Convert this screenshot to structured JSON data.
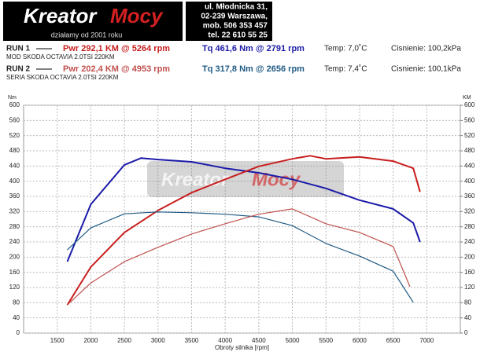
{
  "header": {
    "logo": {
      "left": "Kreator",
      "right": "Mocy",
      "tagline": "działamy od 2001 roku"
    },
    "address": [
      "ul. Młodnicka 31,",
      "02-239  Warszawa,",
      "mob.  506 353 457",
      "tel.  22 610 55 25"
    ]
  },
  "runs": [
    {
      "label": "RUN 1",
      "power": "Pwr  292,1 KM @ 5264 rpm",
      "torque": "Tq  461,6 Nm @ 2791 rpm",
      "temp": "Temp: 7,0˚C",
      "pressure": "Cisnienie: 100,2kPa",
      "car": "MOD SKODA OCTAVIA 2.0TSI 220KM"
    },
    {
      "label": "RUN 2",
      "power": "Pwr  202,4 KM @ 4953 rpm",
      "torque": "Tq  317,8 Nm @ 2656 rpm",
      "temp": "Temp: 7,4˚C",
      "pressure": "Cisnienie: 100,1kPa",
      "car": "SERIA SKODA OCTAVIA 2.0TSI 220KM"
    }
  ],
  "chart_data": {
    "type": "line",
    "ylabel": "Nm",
    "y2label": "KM",
    "xlabel": "Obroty silnika [rpm]",
    "xlim": [
      1000,
      7500
    ],
    "xticks": [
      1500,
      2000,
      2500,
      3000,
      3500,
      4000,
      4500,
      5000,
      5500,
      6000,
      6500,
      7000
    ],
    "ylim": [
      0,
      600
    ],
    "yticks": [
      0,
      40,
      80,
      120,
      160,
      200,
      240,
      280,
      320,
      360,
      400,
      440,
      480,
      520,
      560,
      600
    ],
    "y2lim": [
      0,
      600
    ],
    "y2ticks": [
      0,
      40,
      80,
      120,
      160,
      200,
      240,
      280,
      320,
      360,
      400,
      440,
      480,
      520,
      560,
      600
    ],
    "grid": true,
    "series": [
      {
        "color": "#1a1aa8",
        "x": [
          1650,
          2000,
          2500,
          2750,
          3000,
          3500,
          4000,
          4500,
          5000,
          5500,
          6000,
          6500,
          6800,
          6900
        ],
        "values": [
          188,
          339,
          443,
          461,
          457,
          451,
          434,
          422,
          405,
          381,
          350,
          327,
          290,
          240
        ]
      },
      {
        "color": "#c81e1e",
        "axis": "y2",
        "x": [
          1650,
          2000,
          2500,
          3000,
          3500,
          4000,
          4500,
          5000,
          5264,
          5500,
          6000,
          6500,
          6800,
          6900
        ],
        "values": [
          74,
          174,
          265,
          323,
          370,
          405,
          439,
          459,
          467,
          459,
          464,
          453,
          434,
          372
        ]
      },
      {
        "color": "#1f5a84",
        "x": [
          1650,
          2000,
          2500,
          3000,
          3500,
          4000,
          4500,
          5000,
          5500,
          6000,
          6500,
          6800
        ],
        "values": [
          219,
          277,
          314,
          319,
          317,
          313,
          306,
          283,
          236,
          203,
          163,
          81
        ]
      },
      {
        "color": "#c0504d",
        "axis": "y2",
        "x": [
          1650,
          2000,
          2500,
          3000,
          3500,
          4000,
          4500,
          5000,
          5500,
          6000,
          6500,
          6750
        ],
        "values": [
          74,
          132,
          188,
          226,
          261,
          288,
          313,
          327,
          288,
          265,
          228,
          122
        ]
      }
    ]
  }
}
